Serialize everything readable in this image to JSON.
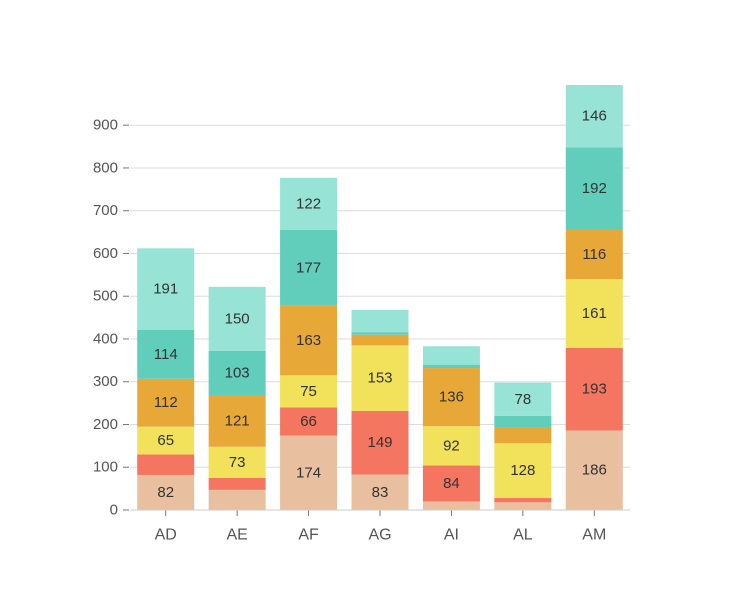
{
  "chart_data": {
    "type": "bar",
    "stacked": true,
    "categories": [
      "AD",
      "AE",
      "AF",
      "AG",
      "AI",
      "AL",
      "AM"
    ],
    "series": [
      {
        "values": [
          82,
          47,
          174,
          83,
          20,
          18,
          186
        ],
        "color": "#e8c0a0"
      },
      {
        "values": [
          48,
          28,
          66,
          149,
          84,
          10,
          193
        ],
        "color": "#f47560"
      },
      {
        "values": [
          65,
          73,
          75,
          153,
          92,
          128,
          161
        ],
        "color": "#f1e15b"
      },
      {
        "values": [
          112,
          121,
          163,
          25,
          136,
          36,
          116
        ],
        "color": "#e8a838"
      },
      {
        "values": [
          114,
          103,
          177,
          6,
          8,
          28,
          192
        ],
        "color": "#61cdbb"
      },
      {
        "values": [
          191,
          150,
          122,
          52,
          43,
          78,
          146
        ],
        "color": "#97e3d5"
      }
    ],
    "label_threshold": 60,
    "y_ticks": [
      0,
      100,
      200,
      300,
      400,
      500,
      600,
      700,
      800,
      900
    ],
    "ylim": [
      0,
      994
    ],
    "grid": true,
    "xlabel": "",
    "ylabel": ""
  }
}
